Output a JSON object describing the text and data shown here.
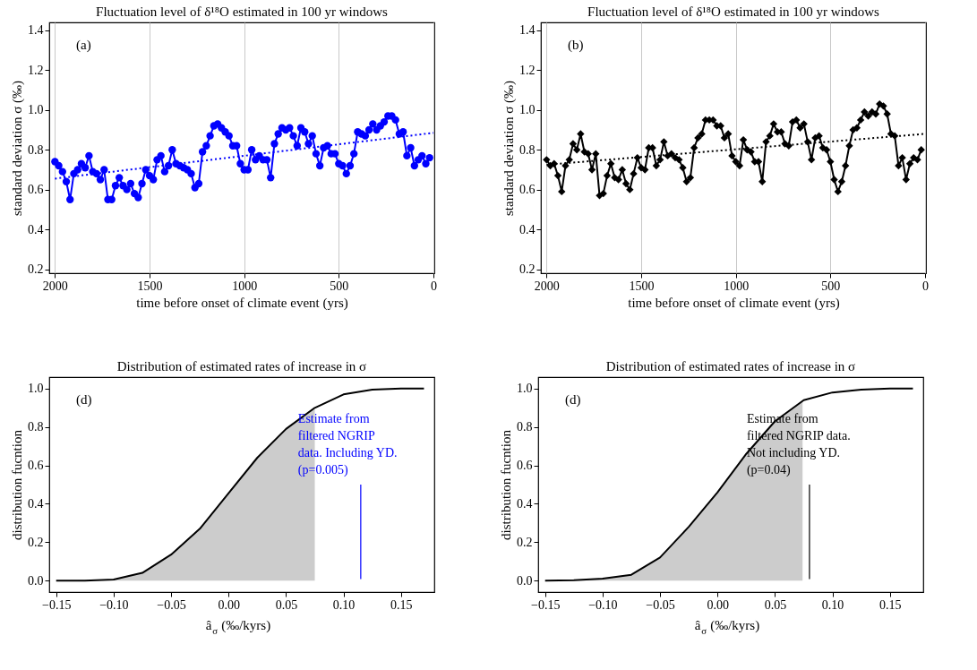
{
  "chart_data": [
    {
      "type": "line",
      "title": "Fluctuation level of δ¹⁸O estimated in 100 yr windows",
      "xlabel": "time before onset of climate event (yrs)",
      "ylabel": "standard deviation σ (‰)",
      "x": [
        2000,
        1980,
        1960,
        1940,
        1920,
        1900,
        1880,
        1860,
        1840,
        1820,
        1800,
        1780,
        1760,
        1740,
        1720,
        1700,
        1680,
        1660,
        1640,
        1620,
        1600,
        1580,
        1560,
        1540,
        1520,
        1500,
        1480,
        1460,
        1440,
        1420,
        1400,
        1380,
        1360,
        1340,
        1320,
        1300,
        1280,
        1260,
        1240,
        1220,
        1200,
        1180,
        1160,
        1140,
        1120,
        1100,
        1080,
        1060,
        1040,
        1020,
        1000,
        980,
        960,
        940,
        920,
        900,
        880,
        860,
        840,
        820,
        800,
        780,
        760,
        740,
        720,
        700,
        680,
        660,
        640,
        620,
        600,
        580,
        560,
        540,
        520,
        500,
        480,
        460,
        440,
        420,
        400,
        380,
        360,
        340,
        320,
        300,
        280,
        260,
        240,
        220,
        200,
        180,
        160,
        140,
        120,
        100,
        80,
        60,
        40,
        20
      ],
      "series": [
        {
          "color": "#0000ff",
          "marker": "circle",
          "values": [
            0.74,
            0.72,
            0.69,
            0.64,
            0.55,
            0.68,
            0.7,
            0.73,
            0.71,
            0.77,
            0.69,
            0.68,
            0.65,
            0.7,
            0.55,
            0.55,
            0.62,
            0.66,
            0.62,
            0.6,
            0.63,
            0.58,
            0.56,
            0.63,
            0.7,
            0.67,
            0.65,
            0.75,
            0.77,
            0.69,
            0.72,
            0.8,
            0.73,
            0.72,
            0.71,
            0.7,
            0.68,
            0.61,
            0.63,
            0.79,
            0.82,
            0.87,
            0.92,
            0.93,
            0.91,
            0.89,
            0.87,
            0.82,
            0.82,
            0.73,
            0.7,
            0.7,
            0.8,
            0.75,
            0.77,
            0.75,
            0.75,
            0.66,
            0.83,
            0.88,
            0.91,
            0.9,
            0.91,
            0.87,
            0.82,
            0.91,
            0.89,
            0.83,
            0.87,
            0.78,
            0.72,
            0.81,
            0.82,
            0.78,
            0.78,
            0.73,
            0.72,
            0.68,
            0.72,
            0.78,
            0.89,
            0.88,
            0.87,
            0.9,
            0.93,
            0.9,
            0.92,
            0.94,
            0.97,
            0.97,
            0.95,
            0.88,
            0.89,
            0.77,
            0.81,
            0.72,
            0.75,
            0.77,
            0.73,
            0.76
          ]
        },
        {
          "type": "line",
          "color": "#0000ff",
          "line_style": "dotted",
          "x": [
            2000,
            0
          ],
          "values": [
            0.655,
            0.885
          ]
        }
      ],
      "xlim": [
        2030,
        -5
      ],
      "xticks": [
        2000,
        1500,
        1000,
        500,
        0
      ],
      "ylim": [
        0.18,
        1.44
      ],
      "yticks": [
        {
          "value": 0.2,
          "label": "0.2"
        },
        {
          "value": 0.4,
          "label": "0.4"
        },
        {
          "value": 0.6,
          "label": "0.6"
        },
        {
          "value": 0.8,
          "label": "0.8"
        },
        {
          "value": 1.0,
          "label": "1.0"
        },
        {
          "value": 1.2,
          "label": "1.2"
        },
        {
          "value": 1.4,
          "label": "1.4"
        }
      ],
      "grid": "x",
      "annotations": [
        "(a)"
      ]
    },
    {
      "type": "line",
      "title": "Fluctuation level of δ¹⁸O estimated in 100 yr windows",
      "xlabel": "time before onset of climate event (yrs)",
      "ylabel": "standard deviation σ (‰)",
      "x": [
        2000,
        1980,
        1960,
        1940,
        1920,
        1900,
        1880,
        1860,
        1840,
        1820,
        1800,
        1780,
        1760,
        1740,
        1720,
        1700,
        1680,
        1660,
        1640,
        1620,
        1600,
        1580,
        1560,
        1540,
        1520,
        1500,
        1480,
        1460,
        1440,
        1420,
        1400,
        1380,
        1360,
        1340,
        1320,
        1300,
        1280,
        1260,
        1240,
        1220,
        1200,
        1180,
        1160,
        1140,
        1120,
        1100,
        1080,
        1060,
        1040,
        1020,
        1000,
        980,
        960,
        940,
        920,
        900,
        880,
        860,
        840,
        820,
        800,
        780,
        760,
        740,
        720,
        700,
        680,
        660,
        640,
        620,
        600,
        580,
        560,
        540,
        520,
        500,
        480,
        460,
        440,
        420,
        400,
        380,
        360,
        340,
        320,
        300,
        280,
        260,
        240,
        220,
        200,
        180,
        160,
        140,
        120,
        100,
        80,
        60,
        40,
        20
      ],
      "series": [
        {
          "color": "#000000",
          "marker": "diamond",
          "values": [
            0.75,
            0.72,
            0.73,
            0.67,
            0.59,
            0.72,
            0.75,
            0.83,
            0.8,
            0.88,
            0.79,
            0.78,
            0.7,
            0.78,
            0.57,
            0.58,
            0.67,
            0.73,
            0.66,
            0.65,
            0.7,
            0.63,
            0.6,
            0.68,
            0.76,
            0.71,
            0.7,
            0.81,
            0.81,
            0.72,
            0.75,
            0.84,
            0.77,
            0.78,
            0.76,
            0.75,
            0.71,
            0.64,
            0.66,
            0.81,
            0.86,
            0.88,
            0.95,
            0.95,
            0.95,
            0.92,
            0.92,
            0.86,
            0.88,
            0.77,
            0.74,
            0.72,
            0.85,
            0.8,
            0.79,
            0.74,
            0.74,
            0.64,
            0.84,
            0.87,
            0.93,
            0.89,
            0.89,
            0.83,
            0.82,
            0.94,
            0.95,
            0.91,
            0.93,
            0.84,
            0.75,
            0.86,
            0.87,
            0.81,
            0.8,
            0.74,
            0.65,
            0.59,
            0.64,
            0.72,
            0.82,
            0.9,
            0.91,
            0.95,
            0.99,
            0.97,
            0.99,
            0.98,
            1.03,
            1.02,
            0.98,
            0.88,
            0.87,
            0.72,
            0.76,
            0.65,
            0.73,
            0.76,
            0.75,
            0.8
          ]
        },
        {
          "type": "line",
          "color": "#000000",
          "line_style": "dotted",
          "x": [
            2000,
            0
          ],
          "values": [
            0.725,
            0.88
          ]
        }
      ],
      "xlim": [
        2030,
        -5
      ],
      "xticks": [
        2000,
        1500,
        1000,
        500,
        0
      ],
      "ylim": [
        0.18,
        1.44
      ],
      "yticks": [
        {
          "value": 0.2,
          "label": "0.2"
        },
        {
          "value": 0.4,
          "label": "0.4"
        },
        {
          "value": 0.6,
          "label": "0.6"
        },
        {
          "value": 0.8,
          "label": "0.8"
        },
        {
          "value": 1.0,
          "label": "1.0"
        },
        {
          "value": 1.2,
          "label": "1.2"
        },
        {
          "value": 1.4,
          "label": "1.4"
        }
      ],
      "grid": "x",
      "annotations": [
        "(b)"
      ]
    },
    {
      "type": "line",
      "title": "Distribution of estimated rates of increase in σ",
      "xlabel": "â$_{σ}$ (‰/kyrs)",
      "ylabel": "distribution fucntion",
      "series": [
        {
          "type": "area",
          "color": "#cccccc",
          "x": [
            -0.15,
            -0.1,
            -0.075,
            -0.05,
            -0.025,
            0,
            0.025,
            0.05,
            0.075
          ],
          "values": [
            0,
            0.005,
            0.04,
            0.135,
            0.27,
            0.455,
            0.64,
            0.79,
            0.9
          ]
        },
        {
          "type": "line",
          "color": "#000000",
          "x": [
            -0.15,
            -0.125,
            -0.1,
            -0.075,
            -0.05,
            -0.025,
            0,
            0.025,
            0.05,
            0.075,
            0.1,
            0.125,
            0.15,
            0.17
          ],
          "values": [
            0,
            0,
            0.005,
            0.04,
            0.135,
            0.27,
            0.455,
            0.64,
            0.79,
            0.9,
            0.97,
            0.995,
            1,
            1
          ]
        }
      ],
      "xlim": [
        -0.156,
        0.179
      ],
      "xticks": [
        {
          "value": -0.15,
          "label": "−0.15"
        },
        {
          "value": -0.1,
          "label": "−0.10"
        },
        {
          "value": -0.05,
          "label": "−0.05"
        },
        {
          "value": 0,
          "label": "0.00"
        },
        {
          "value": 0.05,
          "label": "0.05"
        },
        {
          "value": 0.1,
          "label": "0.10"
        },
        {
          "value": 0.15,
          "label": "0.15"
        }
      ],
      "ylim": [
        -0.06,
        1.06
      ],
      "yticks": [
        {
          "value": 0,
          "label": "0.0"
        },
        {
          "value": 0.2,
          "label": "0.2"
        },
        {
          "value": 0.4,
          "label": "0.4"
        },
        {
          "value": 0.6,
          "label": "0.6"
        },
        {
          "value": 0.8,
          "label": "0.8"
        },
        {
          "value": 1.0,
          "label": "1.0"
        }
      ],
      "annotations": [
        "(d)",
        "Estimate from\nfiltered NGRIP\ndata. Including YD.\n(p=0.005)"
      ],
      "ref_lines": [
        {
          "axis": "x",
          "value": 0.115,
          "color": "#0000ff"
        }
      ]
    },
    {
      "type": "line",
      "title": "Distribution of estimated rates of increase in σ",
      "xlabel": "â$_{σ}$ (‰/kyrs)",
      "ylabel": "distribution fucntion",
      "series": [
        {
          "type": "area",
          "color": "#cccccc",
          "x": [
            -0.15,
            -0.1,
            -0.075,
            -0.05,
            -0.025,
            0,
            0.025,
            0.05,
            0.074
          ],
          "values": [
            0,
            0.01,
            0.03,
            0.12,
            0.28,
            0.46,
            0.66,
            0.83,
            0.94
          ]
        },
        {
          "type": "line",
          "color": "#000000",
          "x": [
            -0.15,
            -0.125,
            -0.1,
            -0.075,
            -0.05,
            -0.025,
            0,
            0.025,
            0.05,
            0.075,
            0.1,
            0.125,
            0.15,
            0.17
          ],
          "values": [
            0,
            0.002,
            0.01,
            0.03,
            0.12,
            0.28,
            0.46,
            0.66,
            0.83,
            0.94,
            0.98,
            0.995,
            1,
            1
          ]
        }
      ],
      "xlim": [
        -0.156,
        0.179
      ],
      "xticks": [
        {
          "value": -0.15,
          "label": "−0.15"
        },
        {
          "value": -0.1,
          "label": "−0.10"
        },
        {
          "value": -0.05,
          "label": "−0.05"
        },
        {
          "value": 0,
          "label": "0.00"
        },
        {
          "value": 0.05,
          "label": "0.05"
        },
        {
          "value": 0.1,
          "label": "0.10"
        },
        {
          "value": 0.15,
          "label": "0.15"
        }
      ],
      "ylim": [
        -0.06,
        1.06
      ],
      "yticks": [
        {
          "value": 0,
          "label": "0.0"
        },
        {
          "value": 0.2,
          "label": "0.2"
        },
        {
          "value": 0.4,
          "label": "0.4"
        },
        {
          "value": 0.6,
          "label": "0.6"
        },
        {
          "value": 0.8,
          "label": "0.8"
        },
        {
          "value": 1.0,
          "label": "1.0"
        }
      ],
      "annotations": [
        "(d)",
        "Estimate from\nfiltered NGRIP data.\nNot including YD.\n(p=0.04)"
      ],
      "ref_lines": [
        {
          "axis": "x",
          "value": 0.08,
          "color": "#000000"
        }
      ]
    }
  ]
}
